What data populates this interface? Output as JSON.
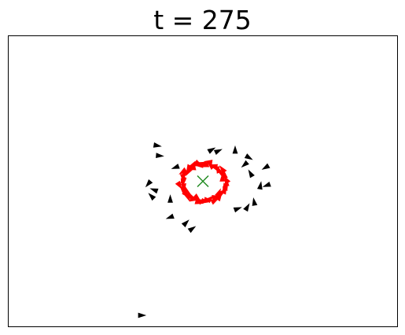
{
  "chart_data": {
    "type": "scatter",
    "title": "t = 275",
    "xlabel": "",
    "ylabel": "",
    "grid": false,
    "axes_ticks": false,
    "xlim": [
      0,
      100
    ],
    "ylim": [
      0,
      100
    ],
    "colors": {
      "agents": "#000000",
      "swarm": "#ff0000",
      "target": "#228b22",
      "frame": "#000000"
    },
    "target": {
      "x": 50,
      "y": 50,
      "marker": "x"
    },
    "series": [
      {
        "marker": "triangle",
        "color": "#000000",
        "points": [
          {
            "x": 38.2,
            "y": 62.3,
            "angle": -10
          },
          {
            "x": 38.8,
            "y": 58.8,
            "angle": -5
          },
          {
            "x": 43.0,
            "y": 54.8,
            "angle": 200
          },
          {
            "x": 36.0,
            "y": 49.2,
            "angle": 230
          },
          {
            "x": 37.5,
            "y": 47.0,
            "angle": 160
          },
          {
            "x": 36.8,
            "y": 44.8,
            "angle": 135
          },
          {
            "x": 41.6,
            "y": 43.8,
            "angle": 90
          },
          {
            "x": 41.6,
            "y": 37.6,
            "angle": 200
          },
          {
            "x": 45.6,
            "y": 35.6,
            "angle": 45
          },
          {
            "x": 47.2,
            "y": 33.6,
            "angle": 35
          },
          {
            "x": 52.2,
            "y": 60.8,
            "angle": 30
          },
          {
            "x": 53.9,
            "y": 60.4,
            "angle": 25
          },
          {
            "x": 58.3,
            "y": 60.7,
            "angle": 90
          },
          {
            "x": 61.8,
            "y": 58.2,
            "angle": -30
          },
          {
            "x": 60.8,
            "y": 55.8,
            "angle": 220
          },
          {
            "x": 66.2,
            "y": 54.8,
            "angle": 210
          },
          {
            "x": 62.3,
            "y": 52.6,
            "angle": 120
          },
          {
            "x": 64.8,
            "y": 48.4,
            "angle": 80
          },
          {
            "x": 66.5,
            "y": 48.6,
            "angle": 200
          },
          {
            "x": 63.2,
            "y": 42.8,
            "angle": 100
          },
          {
            "x": 61.4,
            "y": 41.0,
            "angle": 60
          },
          {
            "x": 58.9,
            "y": 40.5,
            "angle": 20
          },
          {
            "x": 34.2,
            "y": 3.8,
            "angle": 0
          }
        ]
      },
      {
        "marker": "triangle-cluster",
        "color": "#ff0000",
        "center": {
          "x": 50.2,
          "y": 49.6
        },
        "radius_x": 5.6,
        "radius_y": 6.4,
        "count": 46
      }
    ]
  }
}
